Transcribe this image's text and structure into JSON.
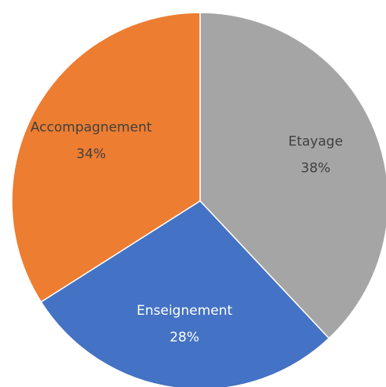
{
  "chart_data": {
    "type": "pie",
    "categories": [
      "Etayage",
      "Enseignement",
      "Accompagnement"
    ],
    "values": [
      38,
      28,
      34
    ],
    "value_labels": [
      "38%",
      "28%",
      "34%"
    ],
    "colors": [
      "#a5a5a5",
      "#4472c4",
      "#ed7d31"
    ]
  }
}
